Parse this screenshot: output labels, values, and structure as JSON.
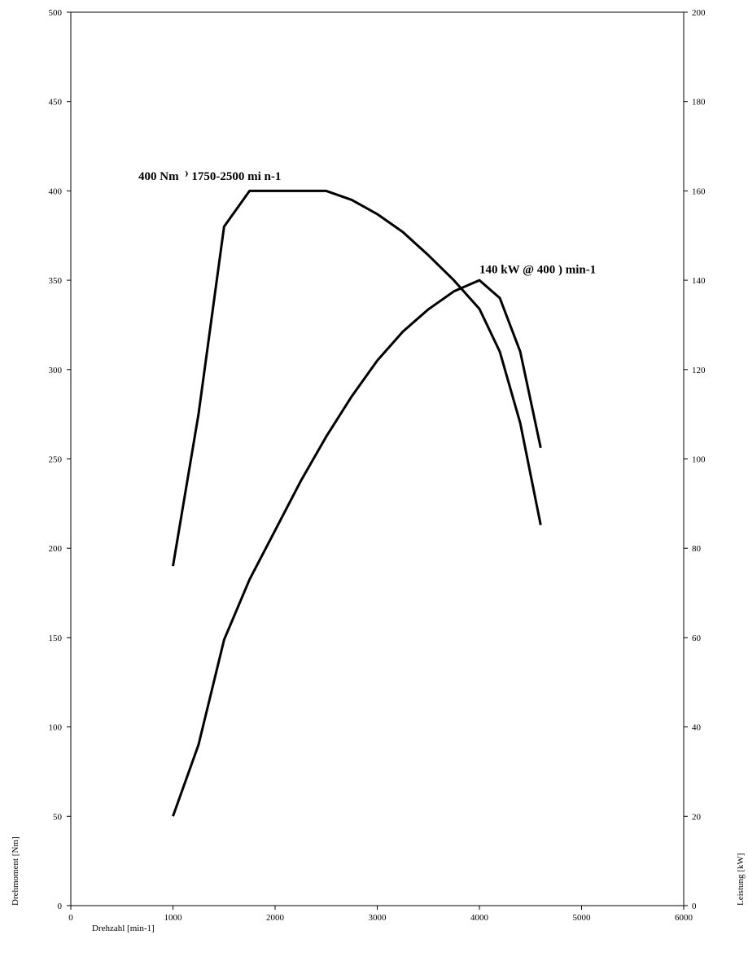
{
  "chart_data": {
    "type": "line",
    "title": "",
    "xlabel": "Drehzahl [min-1]",
    "ylabel_left": "Drehmoment [Nm]",
    "ylabel_right": "Leistung [kW]",
    "xlim": [
      0,
      6000
    ],
    "ylim_left": [
      0,
      500
    ],
    "ylim_right": [
      0,
      200
    ],
    "x_ticks": [
      "0",
      "1000",
      "2000",
      "3000",
      "4000",
      "5000",
      "6000"
    ],
    "y_left_ticks": [
      "0",
      "50",
      "100",
      "150",
      "200",
      "250",
      "300",
      "350",
      "400",
      "450",
      "500"
    ],
    "y_right_ticks": [
      "0",
      "20",
      "40",
      "60",
      "80",
      "100",
      "120",
      "140",
      "160",
      "180",
      "200"
    ],
    "grid": false,
    "series": [
      {
        "axis": "left",
        "x": [
          1000,
          1250,
          1500,
          1750,
          2000,
          2250,
          2500,
          2750,
          3000,
          3250,
          3500,
          3750,
          4000,
          4200,
          4400,
          4600
        ],
        "values": [
          190,
          275,
          380,
          400,
          400,
          400,
          400,
          395,
          387,
          377,
          364,
          350,
          334,
          310,
          270,
          213
        ]
      },
      {
        "axis": "right",
        "x": [
          1000,
          1250,
          1500,
          1750,
          2000,
          2250,
          2500,
          2750,
          3000,
          3250,
          3500,
          3750,
          4000,
          4200,
          4400,
          4600
        ],
        "values": [
          20,
          36,
          59.5,
          73,
          84,
          95,
          105,
          114,
          122,
          128.5,
          133.5,
          137.5,
          140,
          136,
          124,
          102.5
        ]
      }
    ],
    "annotations": [
      {
        "text": "400 Nm  ⁾ 1750-2500 mi n-1",
        "x": 1360,
        "y_left": 406
      },
      {
        "text": "140 kW @ 400 ) min-1",
        "x": 4000,
        "y_left": 354
      }
    ]
  }
}
